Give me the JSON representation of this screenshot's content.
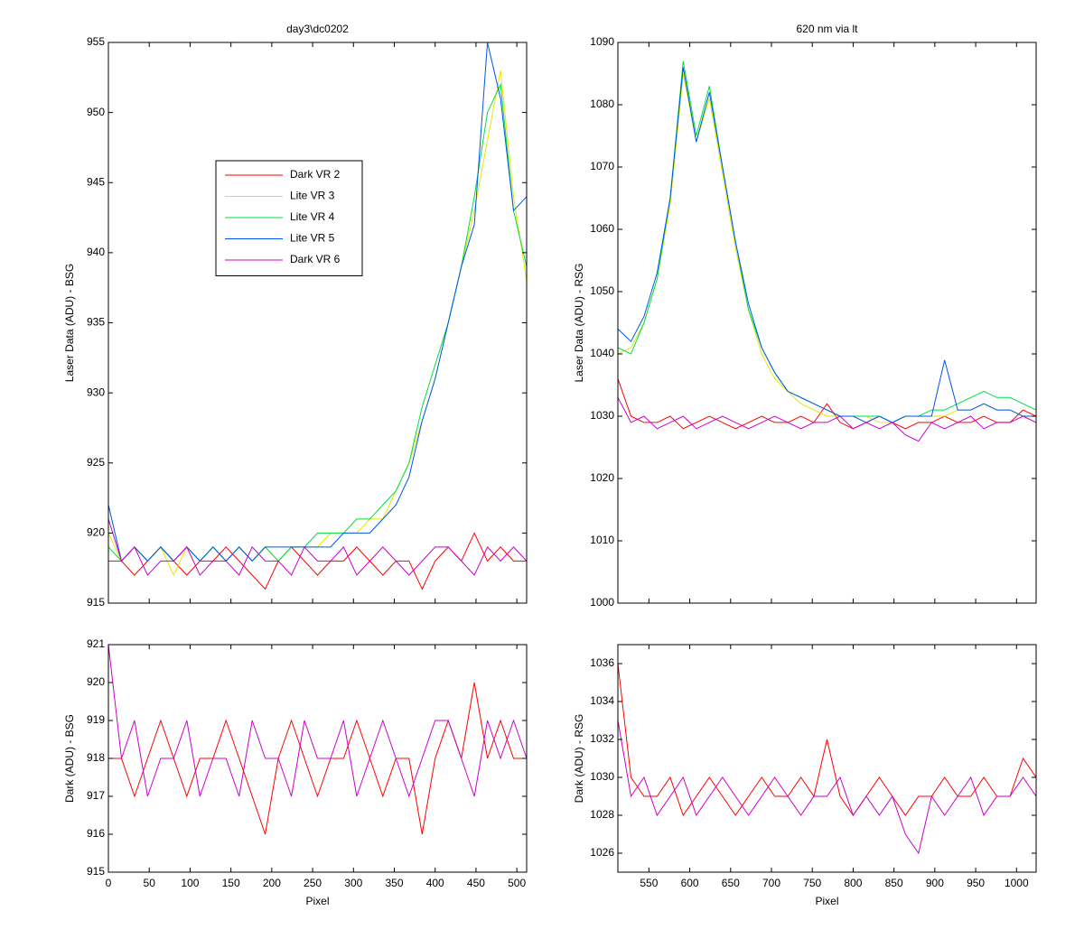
{
  "chart_data": [
    {
      "type": "line",
      "title": "day3\\dc0202",
      "y_label": "Laser Data (ADU) - BSG",
      "x": [
        0,
        16,
        32,
        48,
        64,
        80,
        96,
        112,
        128,
        144,
        160,
        176,
        192,
        208,
        224,
        240,
        256,
        272,
        288,
        304,
        320,
        336,
        352,
        368,
        384,
        400,
        416,
        432,
        448,
        464,
        480,
        496,
        512
      ],
      "xlim": [
        0,
        512
      ],
      "xticks": [
        0,
        50,
        100,
        150,
        200,
        250,
        300,
        350,
        400,
        450,
        500
      ],
      "ylim": [
        915,
        955
      ],
      "yticks": [
        915,
        920,
        925,
        930,
        935,
        940,
        945,
        950,
        955
      ],
      "series": [
        {
          "name": "Dark VR 2",
          "color": "#ff0000",
          "values": [
            918,
            918,
            917,
            918,
            919,
            918,
            917,
            918,
            918,
            919,
            918,
            917,
            916,
            918,
            919,
            918,
            917,
            918,
            918,
            919,
            918,
            917,
            918,
            918,
            916,
            918,
            919,
            918,
            920,
            918,
            919,
            918,
            918
          ]
        },
        {
          "name": "Lite VR 3",
          "color": "#e6e600",
          "values": [
            920,
            918,
            919,
            918,
            919,
            917,
            919,
            918,
            919,
            918,
            919,
            918,
            919,
            918,
            919,
            919,
            919,
            920,
            920,
            920,
            921,
            921,
            923,
            925,
            928,
            931,
            935,
            939,
            943,
            948,
            953,
            944,
            938
          ]
        },
        {
          "name": "Lite VR 4",
          "color": "#00dd44",
          "values": [
            919,
            918,
            919,
            918,
            919,
            918,
            919,
            918,
            919,
            918,
            919,
            918,
            919,
            918,
            919,
            919,
            920,
            920,
            920,
            921,
            921,
            922,
            923,
            925,
            929,
            932,
            935,
            939,
            944,
            950,
            952,
            943,
            939
          ]
        },
        {
          "name": "Lite VR 5",
          "color": "#0055ee",
          "values": [
            922,
            918,
            919,
            918,
            919,
            918,
            919,
            918,
            919,
            918,
            919,
            918,
            919,
            919,
            919,
            919,
            919,
            919,
            920,
            920,
            920,
            921,
            922,
            924,
            928,
            931,
            935,
            939,
            942,
            955,
            951,
            943,
            944
          ]
        },
        {
          "name": "Dark VR 6",
          "color": "#cc00cc",
          "values": [
            921,
            918,
            919,
            917,
            918,
            918,
            919,
            917,
            918,
            918,
            917,
            919,
            918,
            918,
            917,
            919,
            918,
            918,
            919,
            917,
            918,
            919,
            918,
            917,
            918,
            919,
            919,
            918,
            917,
            919,
            918,
            919,
            918
          ]
        }
      ]
    },
    {
      "type": "line",
      "title": "620 nm via lt",
      "y_label": "Laser Data (ADU) - RSG",
      "x": [
        512,
        528,
        544,
        560,
        576,
        592,
        608,
        624,
        640,
        656,
        672,
        688,
        704,
        720,
        736,
        752,
        768,
        784,
        800,
        816,
        832,
        848,
        864,
        880,
        896,
        912,
        928,
        944,
        960,
        976,
        992,
        1008,
        1024
      ],
      "xlim": [
        512,
        1024
      ],
      "xticks": [
        550,
        600,
        650,
        700,
        750,
        800,
        850,
        900,
        950,
        1000
      ],
      "ylim": [
        1000,
        1090
      ],
      "yticks": [
        1000,
        1010,
        1020,
        1030,
        1040,
        1050,
        1060,
        1070,
        1080,
        1090
      ],
      "series": [
        {
          "name": "Dark VR 2",
          "color": "#ff0000",
          "values": [
            1036,
            1030,
            1029,
            1029,
            1030,
            1028,
            1029,
            1030,
            1029,
            1028,
            1029,
            1030,
            1029,
            1029,
            1030,
            1029,
            1032,
            1029,
            1028,
            1029,
            1030,
            1029,
            1028,
            1029,
            1029,
            1030,
            1029,
            1029,
            1030,
            1029,
            1029,
            1031,
            1030
          ]
        },
        {
          "name": "Lite VR 3",
          "color": "#e6e600",
          "values": [
            1040,
            1041,
            1045,
            1052,
            1064,
            1085,
            1074,
            1081,
            1069,
            1057,
            1047,
            1040,
            1036,
            1034,
            1032,
            1031,
            1030,
            1030,
            1030,
            1030,
            1029,
            1029,
            1030,
            1030,
            1030,
            1030,
            1031,
            1031,
            1032,
            1031,
            1031,
            1030,
            1029
          ]
        },
        {
          "name": "Lite VR 4",
          "color": "#00dd44",
          "values": [
            1041,
            1040,
            1045,
            1052,
            1065,
            1087,
            1075,
            1083,
            1070,
            1058,
            1047,
            1041,
            1037,
            1034,
            1033,
            1032,
            1031,
            1030,
            1030,
            1030,
            1030,
            1029,
            1030,
            1030,
            1031,
            1031,
            1032,
            1033,
            1034,
            1033,
            1033,
            1032,
            1031
          ]
        },
        {
          "name": "Lite VR 5",
          "color": "#0055ee",
          "values": [
            1044,
            1042,
            1046,
            1053,
            1065,
            1086,
            1074,
            1082,
            1070,
            1058,
            1048,
            1041,
            1037,
            1034,
            1033,
            1032,
            1031,
            1030,
            1030,
            1029,
            1030,
            1029,
            1030,
            1030,
            1030,
            1039,
            1031,
            1031,
            1032,
            1031,
            1031,
            1030,
            1030
          ]
        },
        {
          "name": "Dark VR 6",
          "color": "#cc00cc",
          "values": [
            1033,
            1029,
            1030,
            1028,
            1029,
            1030,
            1028,
            1029,
            1030,
            1029,
            1028,
            1029,
            1030,
            1029,
            1028,
            1029,
            1029,
            1030,
            1028,
            1029,
            1028,
            1029,
            1027,
            1026,
            1029,
            1028,
            1029,
            1030,
            1028,
            1029,
            1029,
            1030,
            1029
          ]
        }
      ]
    },
    {
      "type": "line",
      "x_label": "Pixel",
      "y_label": "Dark (ADU) - BSG",
      "x": [
        0,
        16,
        32,
        48,
        64,
        80,
        96,
        112,
        128,
        144,
        160,
        176,
        192,
        208,
        224,
        240,
        256,
        272,
        288,
        304,
        320,
        336,
        352,
        368,
        384,
        400,
        416,
        432,
        448,
        464,
        480,
        496,
        512
      ],
      "xlim": [
        0,
        512
      ],
      "xticks": [
        0,
        50,
        100,
        150,
        200,
        250,
        300,
        350,
        400,
        450,
        500
      ],
      "ylim": [
        915,
        921
      ],
      "yticks": [
        915,
        916,
        917,
        918,
        919,
        920,
        921
      ],
      "series": [
        {
          "color": "#ff0000",
          "values": [
            918,
            918,
            917,
            918,
            919,
            918,
            917,
            918,
            918,
            919,
            918,
            917,
            916,
            918,
            919,
            918,
            917,
            918,
            918,
            919,
            918,
            917,
            918,
            918,
            916,
            918,
            919,
            918,
            920,
            918,
            919,
            918,
            918
          ]
        },
        {
          "color": "#cc00cc",
          "values": [
            921,
            918,
            919,
            917,
            918,
            918,
            919,
            917,
            918,
            918,
            917,
            919,
            918,
            918,
            917,
            919,
            918,
            918,
            919,
            917,
            918,
            919,
            918,
            917,
            918,
            919,
            919,
            918,
            917,
            919,
            918,
            919,
            918
          ]
        }
      ]
    },
    {
      "type": "line",
      "x_label": "Pixel",
      "y_label": "Dark (ADU) - RSG",
      "x": [
        512,
        528,
        544,
        560,
        576,
        592,
        608,
        624,
        640,
        656,
        672,
        688,
        704,
        720,
        736,
        752,
        768,
        784,
        800,
        816,
        832,
        848,
        864,
        880,
        896,
        912,
        928,
        944,
        960,
        976,
        992,
        1008,
        1024
      ],
      "xlim": [
        512,
        1024
      ],
      "xticks": [
        550,
        600,
        650,
        700,
        750,
        800,
        850,
        900,
        950,
        1000
      ],
      "ylim": [
        1025,
        1037
      ],
      "yticks": [
        1026,
        1028,
        1030,
        1032,
        1034,
        1036
      ],
      "series": [
        {
          "color": "#ff0000",
          "values": [
            1036,
            1030,
            1029,
            1029,
            1030,
            1028,
            1029,
            1030,
            1029,
            1028,
            1029,
            1030,
            1029,
            1029,
            1030,
            1029,
            1032,
            1029,
            1028,
            1029,
            1030,
            1029,
            1028,
            1029,
            1029,
            1030,
            1029,
            1029,
            1030,
            1029,
            1029,
            1031,
            1030
          ]
        },
        {
          "color": "#cc00cc",
          "values": [
            1033,
            1029,
            1030,
            1028,
            1029,
            1030,
            1028,
            1029,
            1030,
            1029,
            1028,
            1029,
            1030,
            1029,
            1028,
            1029,
            1029,
            1030,
            1028,
            1029,
            1028,
            1029,
            1027,
            1026,
            1029,
            1028,
            1029,
            1030,
            1028,
            1029,
            1029,
            1030,
            1029
          ]
        }
      ]
    }
  ]
}
